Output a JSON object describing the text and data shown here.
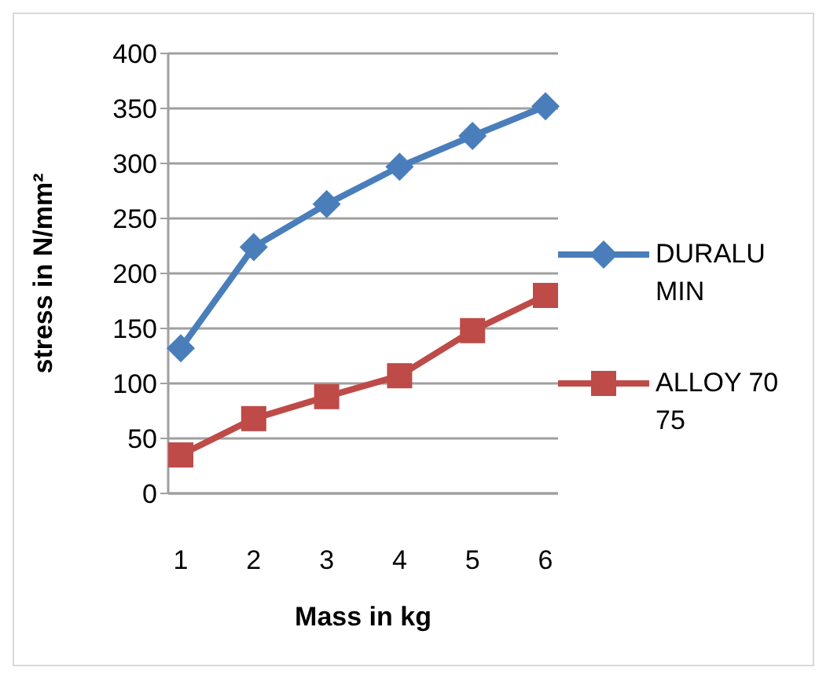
{
  "chart_data": {
    "type": "line",
    "xlabel": "Mass in kg",
    "ylabel": "stress in N/mm²",
    "categories": [
      "1",
      "2",
      "3",
      "4",
      "5",
      "6"
    ],
    "series": [
      {
        "name": "DURALUMIN",
        "color": "#4a7ebb",
        "values": [
          132,
          224,
          263,
          297,
          325,
          352
        ],
        "marker": "diamond"
      },
      {
        "name": "ALLOY 7075",
        "color": "#be4b48",
        "values": [
          35,
          68,
          88,
          107,
          148,
          180
        ],
        "marker": "square"
      }
    ],
    "ylim": [
      0,
      400
    ],
    "yticks": [
      0,
      50,
      100,
      150,
      200,
      250,
      300,
      350,
      400
    ],
    "grid": "y",
    "legend": "right"
  }
}
